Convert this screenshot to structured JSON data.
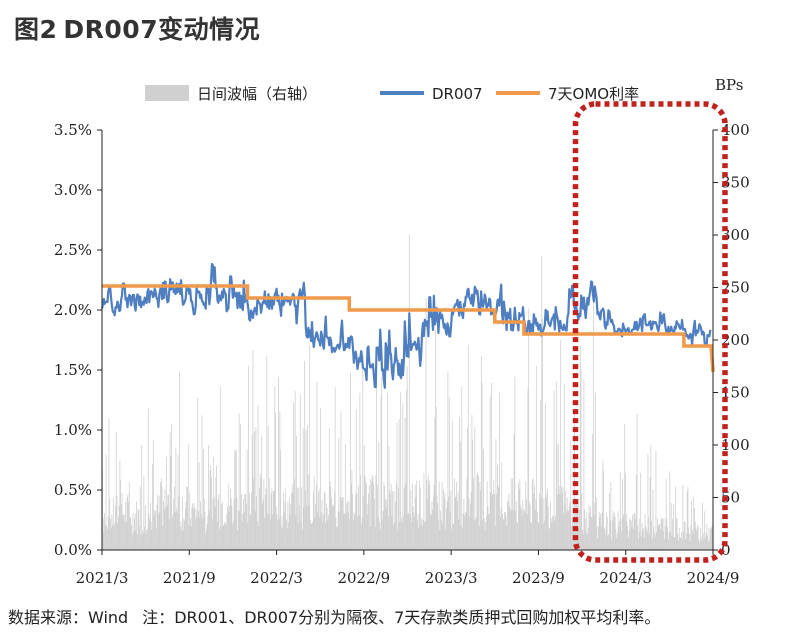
{
  "figure": {
    "label": "图2",
    "title": "DR007变动情况"
  },
  "source": {
    "prefix": "数据来源：Wind",
    "note": "注：DR001、DR007分别为隔夜、7天存款类质押式回购加权平均利率。"
  },
  "chart_data": {
    "type": "line",
    "x_tick_labels": [
      "2021/3",
      "2021/9",
      "2022/3",
      "2022/9",
      "2023/3",
      "2023/9",
      "2024/3",
      "2024/9"
    ],
    "x_range": [
      "2021-03",
      "2024-09"
    ],
    "y_left": {
      "label": "",
      "range": [
        0,
        3.5
      ],
      "tick_labels": [
        "0.0%",
        "0.5%",
        "1.0%",
        "1.5%",
        "2.0%",
        "2.5%",
        "3.0%",
        "3.5%"
      ]
    },
    "y_right": {
      "label": "BPs",
      "range": [
        0,
        400
      ],
      "tick_labels": [
        "0",
        "50",
        "100",
        "150",
        "200",
        "250",
        "300",
        "350",
        "400"
      ]
    },
    "legend_position": "top",
    "grid": false,
    "series": [
      {
        "name": "日间波幅（右轴）",
        "kind": "bar",
        "axis": "right",
        "color": "#d0d0d0",
        "approx_monthly_peak_bps": [
          125,
          85,
          100,
          135,
          120,
          170,
          145,
          100,
          155,
          130,
          190,
          185,
          165,
          180,
          195,
          135,
          155,
          190,
          170,
          165,
          175,
          300,
          240,
          170,
          155,
          195,
          185,
          150,
          165,
          230,
          280,
          200,
          195,
          245,
          85,
          120,
          130,
          100,
          95,
          75,
          60,
          45
        ],
        "approx_monthly_base_bps": [
          40,
          45,
          40,
          45,
          55,
          50,
          45,
          40,
          55,
          50,
          60,
          55,
          50,
          55,
          60,
          55,
          60,
          65,
          60,
          55,
          55,
          60,
          60,
          55,
          55,
          60,
          55,
          50,
          55,
          55,
          55,
          50,
          45,
          40,
          30,
          30,
          30,
          28,
          28,
          25,
          22,
          20
        ]
      },
      {
        "name": "DR007",
        "kind": "line",
        "axis": "left",
        "color": "#4f7fc0",
        "approx_monthly_pct": [
          2.05,
          2.1,
          2.05,
          2.15,
          2.2,
          2.15,
          2.05,
          2.1,
          2.15,
          2.1,
          2.0,
          2.05,
          2.05,
          2.1,
          1.75,
          1.65,
          1.7,
          1.6,
          1.5,
          1.45,
          1.55,
          1.7,
          1.85,
          1.9,
          2.0,
          2.1,
          2.05,
          2.0,
          1.95,
          1.85,
          1.85,
          1.9,
          2.0,
          2.1,
          1.95,
          1.85,
          1.85,
          1.9,
          1.85,
          1.85,
          1.8,
          1.8
        ],
        "approx_min_pct": [
          1.87,
          1.95,
          1.9,
          1.95,
          1.95,
          1.9,
          1.9,
          1.85,
          1.9,
          1.85,
          1.85,
          1.85,
          1.85,
          1.75,
          1.55,
          1.55,
          1.55,
          1.3,
          1.3,
          1.35,
          1.4,
          1.5,
          1.6,
          1.65,
          1.75,
          1.8,
          1.8,
          1.7,
          1.7,
          1.7,
          1.7,
          1.75,
          1.75,
          1.75,
          1.75,
          1.75,
          1.75,
          1.75,
          1.7,
          1.7,
          1.65,
          1.65
        ],
        "approx_max_pct": [
          2.25,
          2.3,
          2.3,
          2.6,
          2.55,
          2.5,
          2.35,
          2.45,
          2.4,
          2.45,
          2.3,
          2.4,
          2.3,
          2.3,
          2.05,
          2.0,
          1.95,
          1.9,
          2.0,
          2.15,
          2.3,
          2.3,
          2.4,
          2.35,
          2.35,
          2.35,
          2.3,
          2.25,
          2.2,
          2.1,
          2.1,
          2.2,
          2.35,
          2.35,
          2.1,
          2.0,
          2.0,
          2.1,
          2.1,
          2.05,
          1.95,
          1.95
        ]
      },
      {
        "name": "7天OMO利率",
        "kind": "step",
        "axis": "left",
        "color": "#f0994a",
        "steps": [
          {
            "from": "2021-03",
            "value": 2.2
          },
          {
            "from": "2022-01",
            "value": 2.1
          },
          {
            "from": "2022-08",
            "value": 2.0
          },
          {
            "from": "2023-06",
            "value": 1.9
          },
          {
            "from": "2023-08",
            "value": 1.8
          },
          {
            "from": "2024-07",
            "value": 1.7
          },
          {
            "from": "2024-09",
            "value": 1.5
          }
        ]
      }
    ],
    "annotation": {
      "shape": "rounded-rectangle",
      "style": "dotted",
      "color": "#c0211d",
      "x_from": "2023-11",
      "x_to": "2024-09"
    }
  }
}
